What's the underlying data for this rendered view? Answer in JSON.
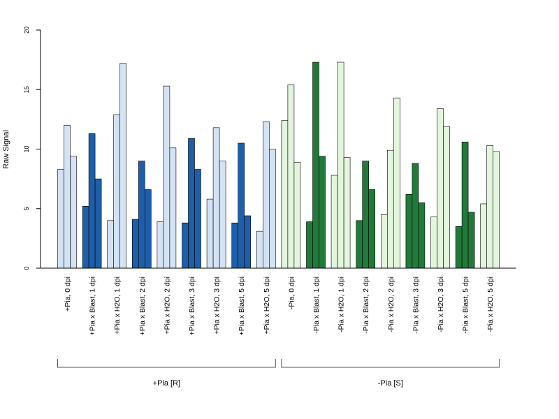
{
  "chart_data": {
    "type": "bar",
    "ylabel": "Raw Signal",
    "ylim": [
      0,
      20
    ],
    "yticks": [
      "0",
      "5",
      "10",
      "15",
      "20"
    ],
    "grid": false,
    "colors": {
      "blue_light": "#d4e3f3",
      "blue_dark": "#1f5ea8",
      "green_light": "#e3f5dc",
      "green_dark": "#217a3a",
      "bar_border": "#000000",
      "axis": "#000000",
      "bracket": "#555555"
    },
    "categories": [
      {
        "label": "+Pia, 0 dpi",
        "values": [
          8.3,
          12.0,
          9.4
        ],
        "color": "blue_light"
      },
      {
        "label": "+Pia x Blast, 1 dpi",
        "values": [
          5.2,
          11.3,
          7.5
        ],
        "color": "blue_dark"
      },
      {
        "label": "+Pia x H2O, 1 dpi",
        "values": [
          4.0,
          12.9,
          17.2
        ],
        "color": "blue_light"
      },
      {
        "label": "+Pia x Blast, 2 dpi",
        "values": [
          4.1,
          9.0,
          6.6
        ],
        "color": "blue_dark"
      },
      {
        "label": "+Pia x H2O, 2 dpi",
        "values": [
          3.9,
          15.3,
          10.1
        ],
        "color": "blue_light"
      },
      {
        "label": "+Pia x Blast, 3 dpi",
        "values": [
          3.8,
          10.9,
          8.3
        ],
        "color": "blue_dark"
      },
      {
        "label": "+Pia x H2O, 3 dpi",
        "values": [
          5.8,
          11.8,
          9.0
        ],
        "color": "blue_light"
      },
      {
        "label": "+Pia x Blast, 5 dpi",
        "values": [
          3.8,
          10.5,
          4.4
        ],
        "color": "blue_dark"
      },
      {
        "label": "+Pia x H2O, 5 dpi",
        "values": [
          3.1,
          12.3,
          10.0
        ],
        "color": "blue_light"
      },
      {
        "label": "-Pia, 0 dpi",
        "values": [
          12.4,
          15.4,
          8.9
        ],
        "color": "green_light"
      },
      {
        "label": "-Pia x Blast, 1 dpi",
        "values": [
          3.9,
          17.3,
          9.4
        ],
        "color": "green_dark"
      },
      {
        "label": "-Pia x H2O, 1 dpi",
        "values": [
          7.8,
          17.3,
          9.3
        ],
        "color": "green_light"
      },
      {
        "label": "-Pia x Blast, 2 dpi",
        "values": [
          4.0,
          9.0,
          6.6
        ],
        "color": "green_dark"
      },
      {
        "label": "-Pia x H2O, 2 dpi",
        "values": [
          4.5,
          9.9,
          14.3
        ],
        "color": "green_light"
      },
      {
        "label": "-Pia x Blast, 3 dpi",
        "values": [
          6.2,
          8.8,
          5.5
        ],
        "color": "green_dark"
      },
      {
        "label": "-Pia x H2O, 3 dpi",
        "values": [
          4.3,
          13.4,
          11.9
        ],
        "color": "green_light"
      },
      {
        "label": "-Pia x Blast, 5 dpi",
        "values": [
          3.5,
          10.6,
          4.7
        ],
        "color": "green_dark"
      },
      {
        "label": "-Pia x H2O, 5 dpi",
        "values": [
          5.4,
          10.3,
          9.8
        ],
        "color": "green_light"
      }
    ],
    "groups": [
      {
        "label": "+Pia [R]",
        "first": 0,
        "last": 8
      },
      {
        "label": "-Pia [S]",
        "first": 9,
        "last": 17
      }
    ]
  }
}
